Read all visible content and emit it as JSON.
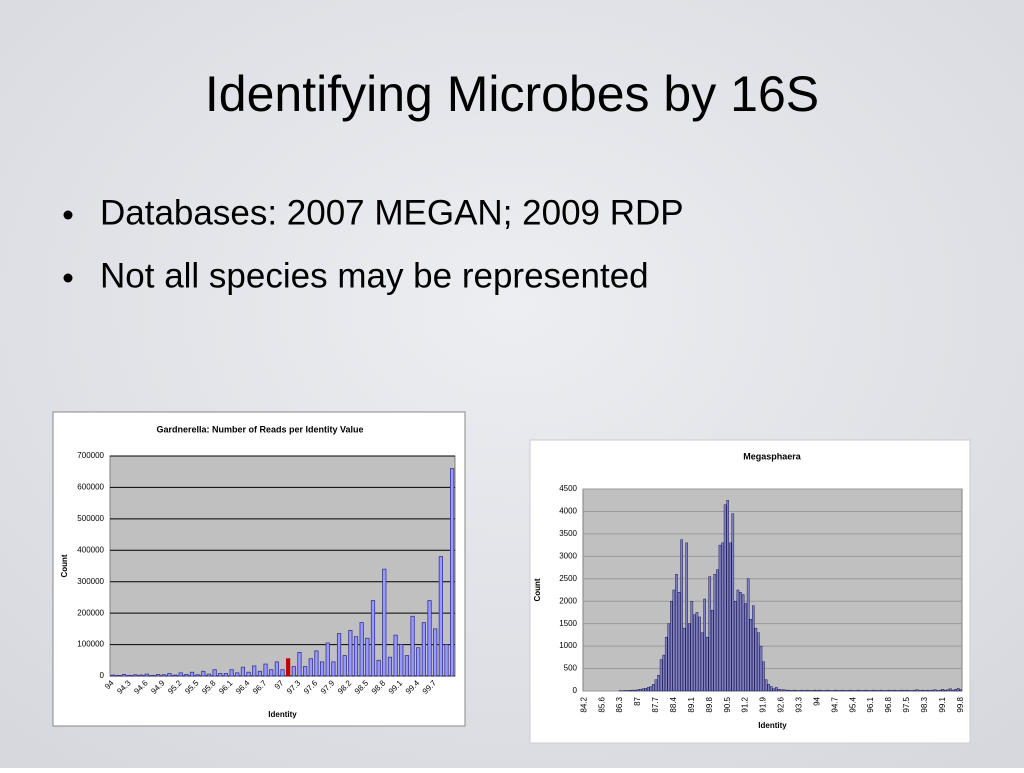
{
  "slide": {
    "title": "Identifying Microbes by 16S",
    "bullets": [
      "Databases: 2007 MEGAN; 2009 RDP",
      "Not all species may be represented"
    ]
  },
  "chart_data": [
    {
      "type": "bar",
      "title": "Gardnerella: Number of Reads per Identity Value",
      "x_label": "Identity",
      "y_label": "Count",
      "categories": [
        "94",
        null,
        null,
        "94.3",
        null,
        null,
        "94.6",
        null,
        null,
        "94.9",
        null,
        null,
        "95.2",
        null,
        null,
        "95.5",
        null,
        null,
        "95.8",
        null,
        null,
        "96.1",
        null,
        null,
        "96.4",
        null,
        null,
        "96.7",
        null,
        null,
        "97",
        null,
        null,
        "97.3",
        null,
        null,
        "97.6",
        null,
        null,
        "97.9",
        null,
        null,
        "98.2",
        null,
        null,
        "98.5",
        null,
        null,
        "98.8",
        null,
        null,
        "99.1",
        null,
        null,
        "99.4",
        null,
        null,
        "99.7",
        null,
        null,
        null
      ],
      "values": [
        3000,
        2000,
        5000,
        2000,
        4000,
        3000,
        6000,
        2000,
        5000,
        4000,
        8000,
        3000,
        10000,
        5000,
        12000,
        4000,
        15000,
        6000,
        20000,
        8000,
        8000,
        20000,
        10000,
        28000,
        12000,
        32000,
        15000,
        38000,
        20000,
        45000,
        20000,
        55000,
        30000,
        75000,
        30000,
        55000,
        80000,
        45000,
        105000,
        45000,
        135000,
        65000,
        145000,
        125000,
        170000,
        120000,
        240000,
        50000,
        340000,
        60000,
        130000,
        100000,
        65000,
        190000,
        90000,
        170000,
        240000,
        150000,
        380000,
        100000,
        660000
      ],
      "color": "#9999ff",
      "edge_color": "#333399",
      "highlight_index": 31,
      "highlight_color": "#c00000",
      "ylim": [
        0,
        700000
      ],
      "yticks": [
        0,
        100000,
        200000,
        300000,
        400000,
        500000,
        600000,
        700000
      ],
      "grid": true,
      "grid_color": "#000000"
    },
    {
      "type": "bar",
      "title": "Megasphaera",
      "x_label": "Identity",
      "y_label": "Count",
      "categories": [
        "84.2",
        null,
        null,
        null,
        null,
        null,
        null,
        "85.6",
        null,
        null,
        null,
        null,
        null,
        null,
        "86.3",
        null,
        null,
        null,
        null,
        null,
        null,
        "87",
        null,
        null,
        null,
        null,
        null,
        null,
        "87.7",
        null,
        null,
        null,
        null,
        null,
        null,
        "88.4",
        null,
        null,
        null,
        null,
        null,
        null,
        "89.1",
        null,
        null,
        null,
        null,
        null,
        null,
        "89.8",
        null,
        null,
        null,
        null,
        null,
        null,
        "90.5",
        null,
        null,
        null,
        null,
        null,
        null,
        "91.2",
        null,
        null,
        null,
        null,
        null,
        null,
        "91.9",
        null,
        null,
        null,
        null,
        null,
        null,
        "92.6",
        null,
        null,
        null,
        null,
        null,
        null,
        "93.3",
        null,
        null,
        null,
        null,
        null,
        null,
        "94",
        null,
        null,
        null,
        null,
        null,
        null,
        "94.7",
        null,
        null,
        null,
        null,
        null,
        null,
        "95.4",
        null,
        null,
        null,
        null,
        null,
        null,
        "96.1",
        null,
        null,
        null,
        null,
        null,
        null,
        "96.8",
        null,
        null,
        null,
        null,
        null,
        null,
        "97.5",
        null,
        null,
        null,
        null,
        null,
        null,
        "98.3",
        null,
        null,
        null,
        null,
        null,
        null,
        "99.1",
        null,
        null,
        null,
        null,
        null,
        null,
        "99.8"
      ],
      "values": [
        0,
        0,
        0,
        0,
        0,
        0,
        0,
        0,
        0,
        0,
        0,
        0,
        0,
        0,
        5,
        5,
        10,
        10,
        15,
        20,
        20,
        30,
        40,
        50,
        60,
        80,
        100,
        150,
        250,
        350,
        700,
        800,
        1200,
        1500,
        2000,
        2250,
        2600,
        2200,
        3370,
        1400,
        3300,
        1500,
        2000,
        1700,
        1750,
        1650,
        1300,
        2050,
        1200,
        2550,
        1800,
        2600,
        2700,
        3250,
        3300,
        4150,
        4250,
        3300,
        3950,
        2000,
        2250,
        2200,
        2150,
        1950,
        2500,
        1600,
        1900,
        1400,
        1300,
        1000,
        650,
        250,
        150,
        100,
        50,
        80,
        40,
        30,
        30,
        20,
        20,
        10,
        20,
        10,
        10,
        20,
        10,
        20,
        10,
        10,
        20,
        10,
        20,
        10,
        10,
        20,
        10,
        10,
        20,
        10,
        10,
        20,
        10,
        10,
        20,
        10,
        10,
        20,
        10,
        10,
        20,
        10,
        10,
        20,
        10,
        10,
        20,
        10,
        10,
        20,
        10,
        20,
        10,
        10,
        20,
        10,
        20,
        10,
        10,
        20,
        30,
        10,
        20,
        10,
        20,
        10,
        20,
        30,
        10,
        20,
        40,
        20,
        30,
        50,
        20,
        40,
        60,
        30
      ],
      "color": "#8080c0",
      "edge_color": "#000040",
      "ylim": [
        0,
        4500
      ],
      "yticks": [
        0,
        500,
        1000,
        1500,
        2000,
        2500,
        3000,
        3500,
        4000,
        4500
      ],
      "grid": true,
      "grid_color": "#9a9a9a"
    }
  ]
}
